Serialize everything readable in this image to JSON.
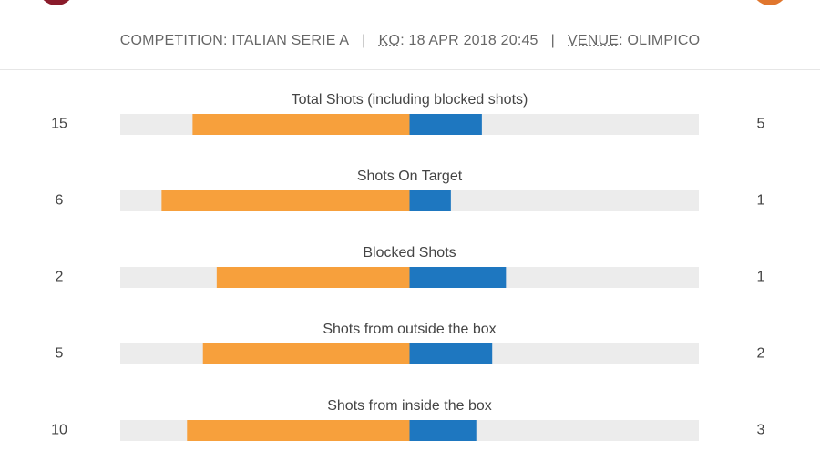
{
  "header": {
    "items": [
      {
        "text": "COMPETITION: ITALIAN SERIE A"
      },
      {
        "abbr": "KO",
        "text": ": 18 APR 2018 20:45"
      },
      {
        "abbr": "VENUE",
        "text": ": OLIMPICO"
      }
    ],
    "separator": "|"
  },
  "stats": [
    {
      "label": "Total Shots (including blocked shots)",
      "home": 15,
      "away": 5
    },
    {
      "label": "Shots On Target",
      "home": 6,
      "away": 1
    },
    {
      "label": "Blocked Shots",
      "home": 2,
      "away": 1
    },
    {
      "label": "Shots from outside the box",
      "home": 5,
      "away": 2
    },
    {
      "label": "Shots from inside the box",
      "home": 10,
      "away": 3
    }
  ],
  "colors": {
    "home": "#f7a03c",
    "away": "#1e77c0",
    "track": "#ececec"
  }
}
